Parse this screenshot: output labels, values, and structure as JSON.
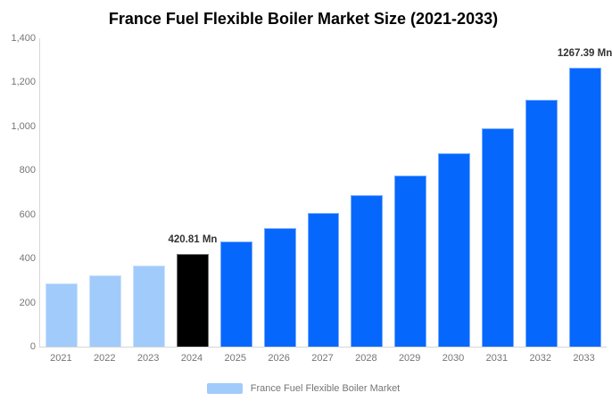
{
  "title": "France Fuel Flexible Boiler Market Size (2021-2033)",
  "colors": {
    "historical_bar": "#A1CBFA",
    "base_year_bar": "#000000",
    "forecast_bar": "#0667FD",
    "axis_line": "#D6D6D6",
    "axis_text": "#757575",
    "title_text": "#000000",
    "data_label_text": "#333333",
    "background": "#FFFFFF"
  },
  "chart_data": {
    "type": "bar",
    "title": "France Fuel Flexible Boiler Market Size (2021-2033)",
    "xlabel": "",
    "ylabel": "",
    "categories": [
      "2021",
      "2022",
      "2023",
      "2024",
      "2025",
      "2026",
      "2027",
      "2028",
      "2029",
      "2030",
      "2031",
      "2032",
      "2033"
    ],
    "values": [
      287,
      324,
      370,
      420.81,
      476,
      538,
      608,
      687,
      777,
      878,
      992,
      1122,
      1267.39
    ],
    "point_labels": [
      "",
      "",
      "",
      "420.81 Mn",
      "",
      "",
      "",
      "",
      "",
      "",
      "",
      "",
      "1267.39 Mn"
    ],
    "bar_colors": [
      "#A1CBFA",
      "#A1CBFA",
      "#A1CBFA",
      "#000000",
      "#0667FD",
      "#0667FD",
      "#0667FD",
      "#0667FD",
      "#0667FD",
      "#0667FD",
      "#0667FD",
      "#0667FD",
      "#0667FD"
    ],
    "unit": "Mn",
    "ylim": [
      0,
      1400
    ],
    "yticks": [
      {
        "value": 0,
        "label": "0"
      },
      {
        "value": 200,
        "label": "200"
      },
      {
        "value": 400,
        "label": "400"
      },
      {
        "value": 600,
        "label": "600"
      },
      {
        "value": 800,
        "label": "800"
      },
      {
        "value": 1000,
        "label": "1,000"
      },
      {
        "value": 1200,
        "label": "1,200"
      },
      {
        "value": 1400,
        "label": "1,400"
      }
    ],
    "grid": false,
    "legend_position": "bottom",
    "legend": [
      {
        "label": "France Fuel Flexible Boiler Market",
        "color": "#A1CBFA"
      }
    ]
  }
}
